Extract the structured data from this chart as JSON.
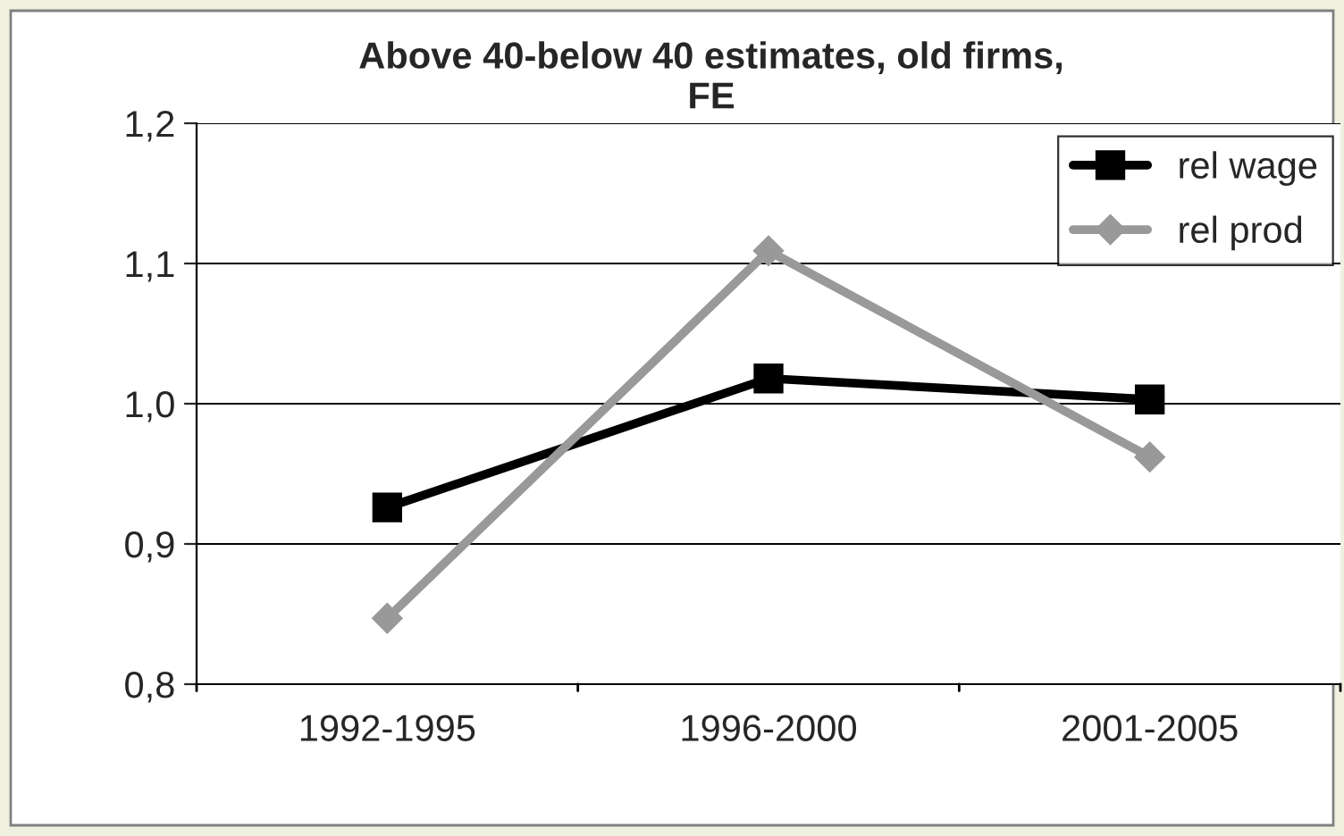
{
  "chart_data": {
    "type": "line",
    "title": "Above 40-below 40 estimates, old firms,\nFE",
    "categories": [
      "1992-1995",
      "1996-2000",
      "2001-2005"
    ],
    "series": [
      {
        "name": "rel wage",
        "color": "#000000",
        "marker": "square",
        "values": [
          0.926,
          1.018,
          1.003
        ]
      },
      {
        "name": "rel prod",
        "color": "#999999",
        "marker": "diamond",
        "values": [
          0.847,
          1.109,
          0.962
        ]
      }
    ],
    "ylim": [
      0.8,
      1.2
    ],
    "yticks": [
      {
        "value": 0.8,
        "label": "0,8"
      },
      {
        "value": 0.9,
        "label": "0,9"
      },
      {
        "value": 1.0,
        "label": "1,0"
      },
      {
        "value": 1.1,
        "label": "1,1"
      },
      {
        "value": 1.2,
        "label": "1,2"
      }
    ],
    "grid": "y",
    "legend": "top right"
  }
}
